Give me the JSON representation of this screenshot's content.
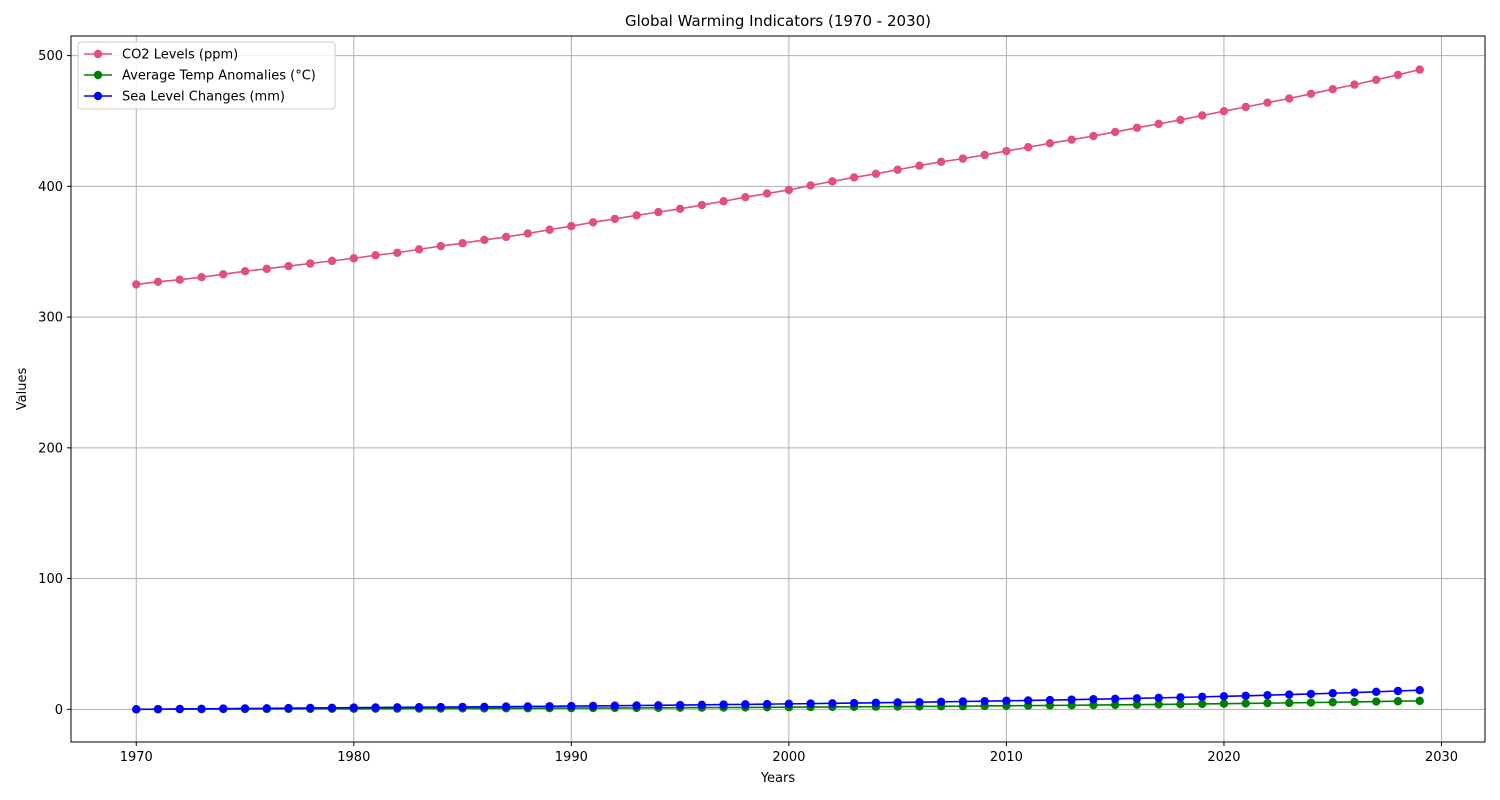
{
  "chart_data": {
    "type": "line",
    "title": "Global Warming Indicators (1970 - 2030)",
    "xlabel": "Years",
    "ylabel": "Values",
    "xlim": [
      1967,
      2032
    ],
    "ylim": [
      -25,
      515
    ],
    "xticks": [
      1970,
      1980,
      1990,
      2000,
      2010,
      2020,
      2030
    ],
    "yticks": [
      0,
      100,
      200,
      300,
      400,
      500
    ],
    "grid": true,
    "legend_position": "top-left",
    "x": [
      1970,
      1971,
      1972,
      1973,
      1974,
      1975,
      1976,
      1977,
      1978,
      1979,
      1980,
      1981,
      1982,
      1983,
      1984,
      1985,
      1986,
      1987,
      1988,
      1989,
      1990,
      1991,
      1992,
      1993,
      1994,
      1995,
      1996,
      1997,
      1998,
      1999,
      2000,
      2001,
      2002,
      2003,
      2004,
      2005,
      2006,
      2007,
      2008,
      2009,
      2010,
      2011,
      2012,
      2013,
      2014,
      2015,
      2016,
      2017,
      2018,
      2019,
      2020,
      2021,
      2022,
      2023,
      2024,
      2025,
      2026,
      2027,
      2028,
      2029
    ],
    "series": [
      {
        "name": "CO2 Levels (ppm)",
        "color": "#e0507a",
        "values": [
          325,
          327,
          328.6,
          330.5,
          332.7,
          335.1,
          336.9,
          339,
          341,
          343,
          345,
          347.3,
          349.2,
          351.8,
          354.3,
          356.5,
          359,
          361.3,
          364,
          366.8,
          369.6,
          372.5,
          375.1,
          377.8,
          380.3,
          382.8,
          385.7,
          388.6,
          391.7,
          394.6,
          397.2,
          400.7,
          403.8,
          406.8,
          409.6,
          412.7,
          415.8,
          418.8,
          421.2,
          424,
          427,
          429.9,
          432.9,
          435.7,
          438.5,
          441.6,
          444.8,
          447.8,
          450.8,
          454.2,
          457.5,
          460.7,
          464,
          467.2,
          470.8,
          474.3,
          477.8,
          481.5,
          485.3,
          489.3
        ]
      },
      {
        "name": "Average Temp Anomalies (°C)",
        "color": "#008000",
        "values": [
          0,
          0.05,
          0.1,
          0.14,
          0.18,
          0.22,
          0.26,
          0.3,
          0.34,
          0.38,
          0.42,
          0.46,
          0.5,
          0.55,
          0.6,
          0.65,
          0.7,
          0.75,
          0.8,
          0.86,
          0.92,
          0.98,
          1.04,
          1.1,
          1.17,
          1.24,
          1.31,
          1.38,
          1.46,
          1.54,
          1.62,
          1.71,
          1.8,
          1.9,
          2,
          2.1,
          2.21,
          2.32,
          2.44,
          2.56,
          2.69,
          2.82,
          2.96,
          3.1,
          3.25,
          3.41,
          3.57,
          3.74,
          3.92,
          4.1,
          4.3,
          4.5,
          4.71,
          4.93,
          5.16,
          5.4,
          5.65,
          5.91,
          6.18,
          6.46
        ]
      },
      {
        "name": "Sea Level Changes (mm)",
        "color": "#0000ff",
        "values": [
          0,
          0.13,
          0.26,
          0.39,
          0.52,
          0.65,
          0.78,
          0.91,
          1.04,
          1.17,
          1.3,
          1.4,
          1.5,
          1.6,
          1.7,
          1.8,
          1.92,
          2.05,
          2.18,
          2.32,
          2.46,
          2.61,
          2.76,
          2.92,
          3.08,
          3.25,
          3.42,
          3.6,
          3.78,
          3.97,
          4.16,
          4.36,
          4.57,
          4.78,
          5.0,
          5.23,
          5.47,
          5.71,
          5.97,
          6.23,
          6.5,
          6.79,
          7.08,
          7.39,
          7.71,
          8.04,
          8.39,
          8.75,
          9.13,
          9.52,
          9.93,
          10.36,
          10.81,
          11.28,
          11.77,
          12.29,
          12.83,
          13.4,
          14.0,
          14.62
        ]
      }
    ]
  }
}
